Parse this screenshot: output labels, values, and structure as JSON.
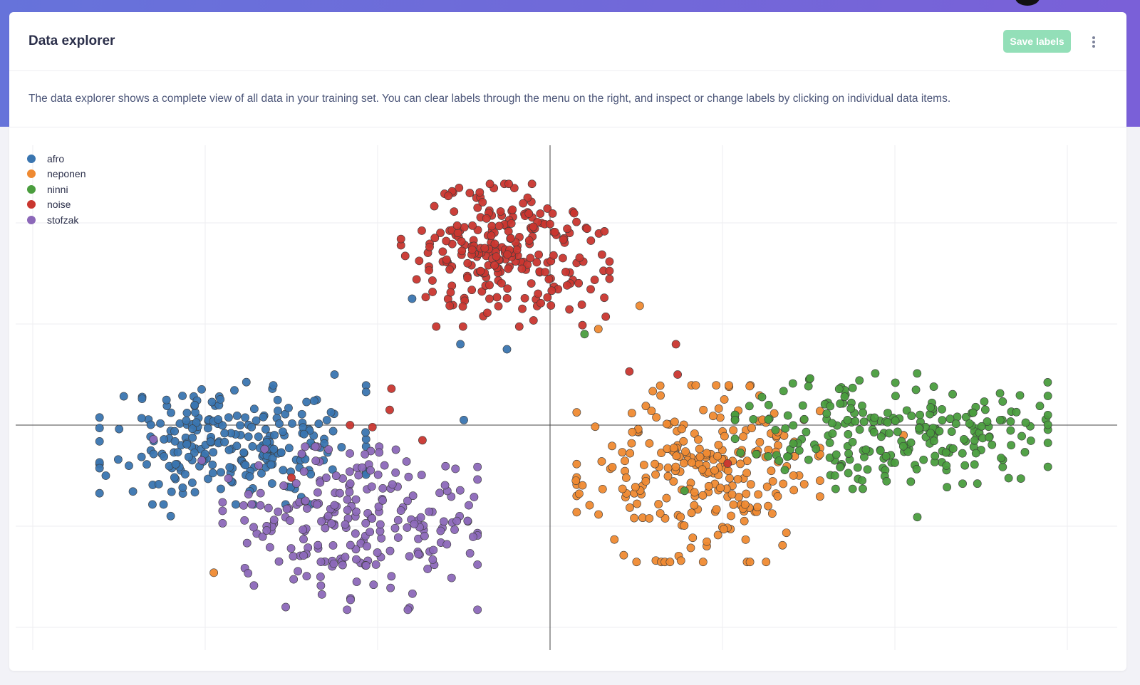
{
  "header": {
    "title": "Data explorer",
    "save_label": "Save labels",
    "menu_icon": "more-vertical-icon"
  },
  "description": "The data explorer shows a complete view of all data in your training set. You can clear labels through the menu on the right, and inspect or change labels by clicking on individual data items.",
  "chart_data": {
    "type": "scatter",
    "title": "",
    "xlabel": "",
    "ylabel": "",
    "xlim": [
      -31,
      33
    ],
    "ylim": [
      -22,
      28
    ],
    "grid": true,
    "zero_lines": true,
    "legend_position": "top-left",
    "series": [
      {
        "name": "afro",
        "color": "#3a75b0",
        "count": 250,
        "center": [
          -18.4,
          -1.8
        ],
        "spread": [
          4.6,
          3.6
        ],
        "seed": 11,
        "outliers": [
          [
            -8,
            12.5
          ],
          [
            -5.2,
            8
          ],
          [
            -2.5,
            7.5
          ],
          [
            -5,
            0.5
          ],
          [
            -22,
            -9
          ],
          [
            -12.5,
            5
          ]
        ]
      },
      {
        "name": "neponen",
        "color": "#ef8a32",
        "count": 250,
        "center": [
          8.6,
          -4.8
        ],
        "spread": [
          4.2,
          5.2
        ],
        "seed": 23,
        "outliers": [
          [
            5.2,
            11.8
          ],
          [
            2.8,
            9.5
          ],
          [
            -19.5,
            -14.6
          ],
          [
            20.5,
            -1
          ],
          [
            1.5,
            -5.5
          ]
        ]
      },
      {
        "name": "ninni",
        "color": "#4a9d3e",
        "count": 240,
        "center": [
          19.8,
          -0.6
        ],
        "spread": [
          5.4,
          3.4
        ],
        "seed": 37,
        "outliers": [
          [
            2,
            9
          ],
          [
            21.3,
            -9.1
          ],
          [
            7.8,
            -6.5
          ]
        ]
      },
      {
        "name": "noise",
        "color": "#c9362f",
        "count": 250,
        "center": [
          -2.6,
          16.8
        ],
        "spread": [
          3.6,
          4.2
        ],
        "seed": 51,
        "outliers": [
          [
            -9.2,
            3.6
          ],
          [
            -9.3,
            1.5
          ],
          [
            -11.6,
            0
          ],
          [
            -7.4,
            -1.5
          ],
          [
            -15,
            -5.2
          ],
          [
            7.3,
            8
          ],
          [
            10.3,
            -3.8
          ],
          [
            4.6,
            5.3
          ],
          [
            7.4,
            5
          ],
          [
            -10.3,
            -0.2
          ]
        ]
      },
      {
        "name": "stofzak",
        "color": "#8c68b9",
        "count": 230,
        "center": [
          -11.6,
          -10.2
        ],
        "spread": [
          4.4,
          4.8
        ],
        "seed": 67,
        "outliers": [
          [
            -23,
            -1.4
          ],
          [
            -20.2,
            -3.5
          ],
          [
            -16.9,
            -4
          ]
        ]
      }
    ]
  }
}
